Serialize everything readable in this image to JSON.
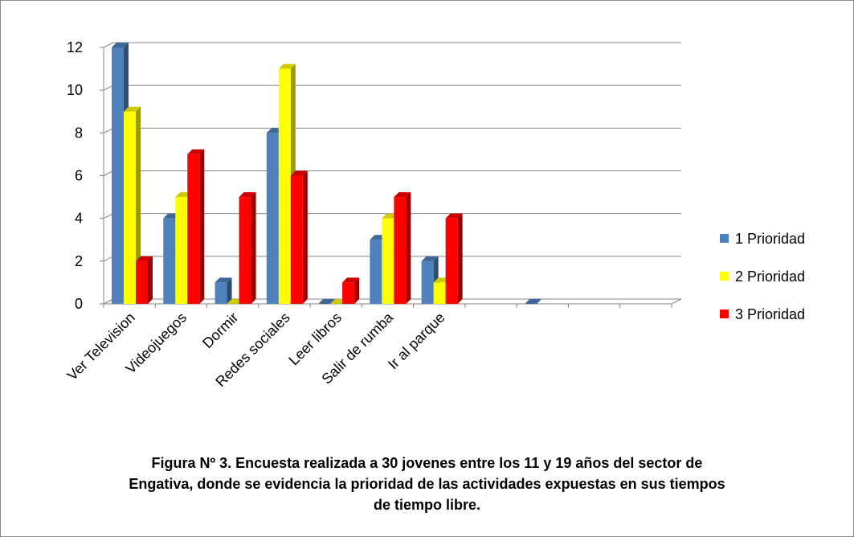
{
  "chart_data": {
    "type": "bar3d",
    "categories": [
      "Ver Television",
      "Videojuegos",
      "Dormir",
      "Redes sociales",
      "Leer libros",
      "Salir de rumba",
      "Ir al parque",
      null,
      null,
      null,
      null
    ],
    "series": [
      {
        "name": "1 Prioridad",
        "color": "#4f81bd",
        "values": [
          12,
          4,
          1,
          8,
          0,
          3,
          2,
          null,
          0,
          null,
          null
        ]
      },
      {
        "name": "2 Prioridad",
        "color": "#ffff00",
        "values": [
          9,
          5,
          0,
          11,
          0,
          4,
          1,
          null,
          null,
          null,
          null
        ]
      },
      {
        "name": "3 Prioridad",
        "color": "#ff0000",
        "values": [
          2,
          7,
          5,
          6,
          1,
          5,
          4,
          null,
          null,
          null,
          null
        ]
      }
    ],
    "ylim": [
      0,
      12
    ],
    "yticks": [
      0,
      2,
      4,
      6,
      8,
      10,
      12
    ],
    "grid": true,
    "legend": "right",
    "caption": "Figura Nº 3. Encuesta realizada a 30 jovenes entre los 11 y 19 años del sector de Engativa, donde se evidencia la prioridad de las actividades expuestas en sus tiempos de tiempo libre."
  }
}
